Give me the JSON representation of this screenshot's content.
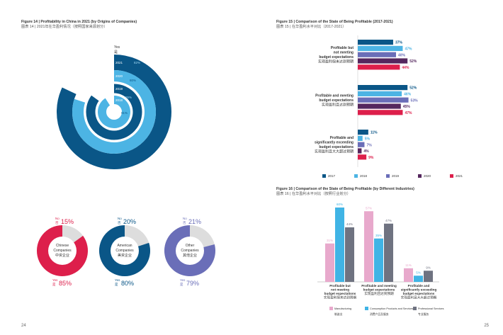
{
  "pages": {
    "left_number": "24",
    "right_number": "25"
  },
  "colors": {
    "dark_blue": "#0a5687",
    "light_blue": "#4cb4e4",
    "purple_blue": "#6a6eb8",
    "dark_purple": "#55275e",
    "crimson": "#dd1f4b",
    "grey": "#dddddd",
    "pink": "#e8a9cc",
    "cyan": "#40b4e5",
    "slate": "#6f7381"
  },
  "fig14": {
    "title_en": "Figure 14 | Profitability in China in 2021 (by Origins of Companies)",
    "title_cn": "图表 14 | 2021年在华盈利情况（按照国家来源划分）",
    "yes_label": "Yes",
    "yes_label_cn": "是",
    "rings": [
      {
        "year": "2021",
        "value": 82,
        "label": "82%"
      },
      {
        "year": "2020",
        "value": 80,
        "label": "80%"
      },
      {
        "year": "2019",
        "value": 85,
        "label": "85%"
      },
      {
        "year": "2018",
        "value": 91,
        "label": "91%"
      }
    ],
    "pies": [
      {
        "name_en1": "Chinese",
        "name_en2": "Companies",
        "name_cn": "中资企业",
        "no": 15,
        "yes": 85,
        "no_label": "No",
        "no_cn": "否",
        "no_value": "15%",
        "yes_label": "Yes",
        "yes_cn": "是",
        "yes_value": "85%",
        "color": "#dd1f4b"
      },
      {
        "name_en1": "American",
        "name_en2": "Companies",
        "name_cn": "美资企业",
        "no": 20,
        "yes": 80,
        "no_label": "No",
        "no_cn": "否",
        "no_value": "20%",
        "yes_label": "Yes",
        "yes_cn": "是",
        "yes_value": "80%",
        "color": "#0a5687"
      },
      {
        "name_en1": "Other",
        "name_en2": "Companies",
        "name_cn": "其他企业",
        "no": 21,
        "yes": 79,
        "no_label": "No",
        "no_cn": "否",
        "no_value": "21%",
        "yes_label": "Yes",
        "yes_cn": "是",
        "yes_value": "79%",
        "color": "#6a6eb8"
      }
    ]
  },
  "fig15": {
    "title_en": "Figure 15 | Comparison of the State of Being Profitable (2017-2021)",
    "title_cn": "图表 15 | 在华盈利水平对比（2017-2021）",
    "groups": [
      {
        "lines": [
          "Profitable but",
          "not meeting",
          "budget expectations",
          "实现盈利但未达到预期"
        ],
        "values": [
          37,
          47,
          40,
          52,
          44
        ],
        "labels": [
          "37%",
          "47%",
          "40%",
          "52%",
          "44%"
        ]
      },
      {
        "lines": [
          "Profitable and meeting",
          "budget expectations",
          "实现盈利且达到预期"
        ],
        "values": [
          52,
          46,
          53,
          45,
          47
        ],
        "labels": [
          "52%",
          "46%",
          "53%",
          "45%",
          "47%"
        ]
      },
      {
        "lines": [
          "Profitable and",
          "significantly exceeding",
          "budget expectations",
          "实现盈利且大大超过预期"
        ],
        "values": [
          11,
          5,
          7,
          4,
          9
        ],
        "labels": [
          "11%",
          "5%",
          "7%",
          "4%",
          "9%"
        ]
      }
    ],
    "legend": [
      "2017",
      "2018",
      "2019",
      "2020",
      "2021"
    ]
  },
  "fig16": {
    "title_en": "Figure 16 | Comparison of the State of Being Profitable (by Different Industries)",
    "title_cn": "图表 16 | 在华盈利水平对比（按照行业划分）",
    "categories": [
      {
        "lines": [
          "Profitable but",
          "not meeting",
          "budget expectations",
          "实现盈利但未达到预期"
        ]
      },
      {
        "lines": [
          "Profitable and meeting",
          "budget expectations",
          "实现盈利且达到预期"
        ]
      },
      {
        "lines": [
          "Profitable and",
          "significantly exceeding",
          "budget expectations",
          "实现盈利且大大超过预期"
        ]
      }
    ],
    "series": [
      {
        "name": "Manufacturing",
        "name_cn": "制造业",
        "values": [
          31,
          57,
          11
        ],
        "labels": [
          "31%",
          "57%",
          "11%"
        ]
      },
      {
        "name": "Consumption Products and Services",
        "name_cn": "消费产品及服务",
        "values": [
          60,
          35,
          5
        ],
        "labels": [
          "60%",
          "35%",
          "5%"
        ]
      },
      {
        "name": "Professional Services",
        "name_cn": "专业服务",
        "values": [
          44,
          47,
          9
        ],
        "labels": [
          "44%",
          "47%",
          "9%"
        ]
      }
    ]
  },
  "chart_data": [
    {
      "type": "pie",
      "title": "Figure 14 | Profitability in China in 2021 (by Origins of Companies)",
      "subtype": "radial-bar",
      "categories": [
        "2021",
        "2020",
        "2019",
        "2018"
      ],
      "values": [
        82,
        80,
        85,
        91
      ]
    },
    {
      "type": "pie",
      "categories": [
        "No",
        "Yes"
      ],
      "values": [
        15,
        85
      ],
      "center_label": "Chinese Companies"
    },
    {
      "type": "pie",
      "categories": [
        "No",
        "Yes"
      ],
      "values": [
        20,
        80
      ],
      "center_label": "American Companies"
    },
    {
      "type": "pie",
      "categories": [
        "No",
        "Yes"
      ],
      "values": [
        21,
        79
      ],
      "center_label": "Other Companies"
    },
    {
      "type": "bar",
      "orientation": "horizontal",
      "title": "Figure 15 | Comparison of the State of Being Profitable (2017-2021)",
      "categories": [
        "Profitable but not meeting budget expectations",
        "Profitable and meeting budget expectations",
        "Profitable and significantly exceeding budget expectations"
      ],
      "series": [
        {
          "name": "2017",
          "values": [
            37,
            52,
            11
          ]
        },
        {
          "name": "2018",
          "values": [
            47,
            46,
            5
          ]
        },
        {
          "name": "2019",
          "values": [
            40,
            53,
            7
          ]
        },
        {
          "name": "2020",
          "values": [
            52,
            45,
            4
          ]
        },
        {
          "name": "2021",
          "values": [
            44,
            47,
            9
          ]
        }
      ],
      "legend": "bottom"
    },
    {
      "type": "bar",
      "title": "Figure 16 | Comparison of the State of Being Profitable (by Different Industries)",
      "categories": [
        "Profitable but not meeting budget expectations",
        "Profitable and meeting budget expectations",
        "Profitable and significantly exceeding budget expectations"
      ],
      "series": [
        {
          "name": "Manufacturing",
          "values": [
            31,
            57,
            11
          ]
        },
        {
          "name": "Consumption Products and Services",
          "values": [
            60,
            35,
            5
          ]
        },
        {
          "name": "Professional Services",
          "values": [
            44,
            47,
            9
          ]
        }
      ],
      "legend": "bottom"
    }
  ]
}
